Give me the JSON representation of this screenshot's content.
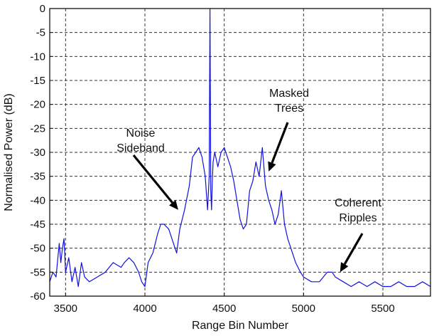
{
  "chart_data": {
    "type": "line",
    "title": "",
    "xlabel": "Range Bin Number",
    "ylabel": "Normalised Power (dB)",
    "xlim": [
      3400,
      5800
    ],
    "ylim": [
      -60,
      0
    ],
    "xticks": [
      3500,
      4000,
      4500,
      5000,
      5500
    ],
    "yticks": [
      0,
      -5,
      -10,
      -15,
      -20,
      -25,
      -30,
      -35,
      -40,
      -45,
      -50,
      -55,
      -60
    ],
    "grid": true,
    "line_color": "#1010e0",
    "series": [
      {
        "x": [
          3400,
          3420,
          3440,
          3460,
          3470,
          3480,
          3490,
          3500,
          3520,
          3540,
          3560,
          3580,
          3600,
          3620,
          3650,
          3700,
          3750,
          3800,
          3850,
          3870,
          3900,
          3930,
          3960,
          3980,
          4000,
          4020,
          4050,
          4080,
          4100,
          4120,
          4150,
          4180,
          4200,
          4220,
          4250,
          4280,
          4300,
          4320,
          4340,
          4360,
          4380,
          4395,
          4405,
          4410,
          4415,
          4420,
          4425,
          4430,
          4440,
          4460,
          4480,
          4500,
          4520,
          4540,
          4560,
          4580,
          4600,
          4620,
          4640,
          4660,
          4680,
          4700,
          4720,
          4740,
          4760,
          4780,
          4800,
          4820,
          4840,
          4860,
          4880,
          4900,
          4920,
          4950,
          4980,
          5000,
          5050,
          5100,
          5150,
          5180,
          5200,
          5250,
          5300,
          5350,
          5400,
          5450,
          5500,
          5550,
          5600,
          5650,
          5700,
          5750,
          5800
        ],
        "y": [
          -57,
          -55,
          -56,
          -49,
          -53,
          -50,
          -48,
          -55,
          -52,
          -57,
          -54,
          -58,
          -53,
          -56,
          -57,
          -56,
          -55,
          -53,
          -54,
          -53,
          -52,
          -53,
          -55,
          -57,
          -58,
          -53,
          -51,
          -47,
          -45,
          -45,
          -46,
          -49,
          -51,
          -46,
          -42,
          -37,
          -31,
          -30,
          -29,
          -31,
          -35,
          -42,
          -35,
          0,
          -38,
          -42,
          -36,
          -32,
          -30,
          -33,
          -30,
          -29,
          -31,
          -33,
          -36,
          -40,
          -44,
          -46,
          -45,
          -38,
          -36,
          -32,
          -35,
          -29,
          -37,
          -40,
          -42,
          -45,
          -43,
          -38,
          -45,
          -48,
          -50,
          -53,
          -55,
          -56,
          -57,
          -57,
          -55,
          -55,
          -56,
          -57,
          -58,
          -57,
          -58,
          -57,
          -58,
          -58,
          -57,
          -58,
          -58,
          -57,
          -58
        ]
      }
    ],
    "annotations": [
      {
        "lines": [
          "Noise",
          "Sideband"
        ],
        "target": [
          4210,
          -42
        ]
      },
      {
        "lines": [
          "Masked",
          "Trees"
        ],
        "target": [
          4780,
          -34
        ]
      },
      {
        "lines": [
          "Coherent",
          "Ripples"
        ],
        "target": [
          5230,
          -55
        ]
      }
    ]
  }
}
